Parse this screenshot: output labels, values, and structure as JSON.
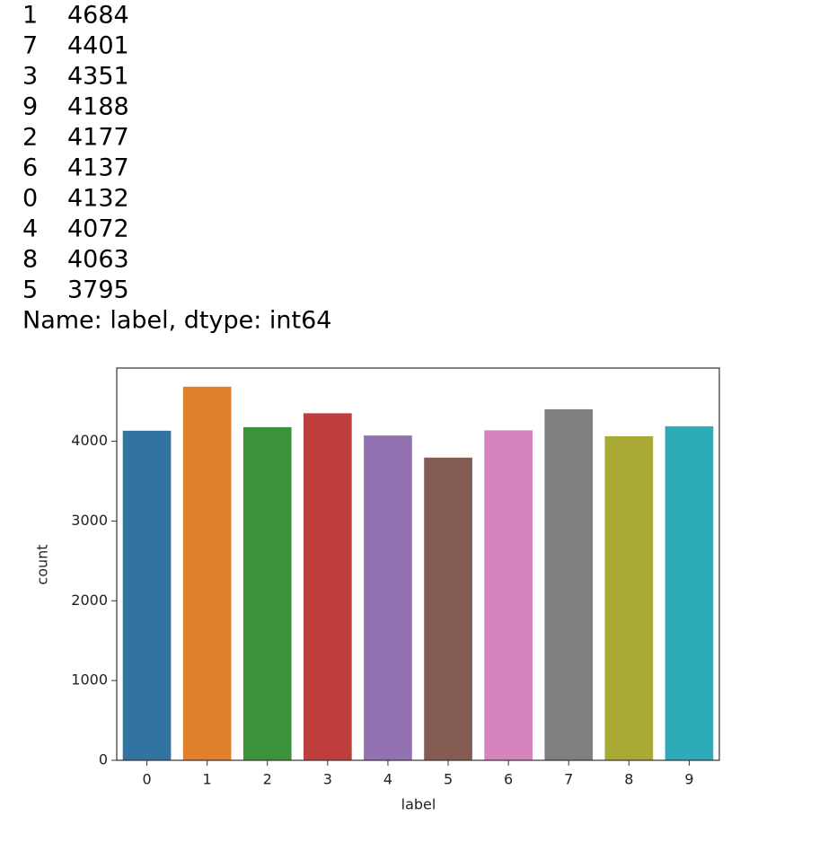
{
  "output": {
    "rows": [
      [
        1,
        4684
      ],
      [
        7,
        4401
      ],
      [
        3,
        4351
      ],
      [
        9,
        4188
      ],
      [
        2,
        4177
      ],
      [
        6,
        4137
      ],
      [
        0,
        4132
      ],
      [
        4,
        4072
      ],
      [
        8,
        4063
      ],
      [
        5,
        3795
      ]
    ],
    "footer": "Name: label, dtype: int64"
  },
  "chart_data": {
    "type": "bar",
    "x_label": "label",
    "y_label": "count",
    "categories": [
      "0",
      "1",
      "2",
      "3",
      "4",
      "5",
      "6",
      "7",
      "8",
      "9"
    ],
    "values": [
      4132,
      4684,
      4177,
      4351,
      4072,
      3795,
      4137,
      4401,
      4063,
      4188
    ],
    "colors": [
      "#3274a1",
      "#e1812c",
      "#3a923a",
      "#c03d3e",
      "#9372b2",
      "#845b53",
      "#d684bd",
      "#7f7f7f",
      "#a9aa35",
      "#2eabb8"
    ],
    "ylim": [
      0,
      4918
    ],
    "yticks": [
      0,
      1000,
      2000,
      3000,
      4000
    ],
    "grid": false
  }
}
